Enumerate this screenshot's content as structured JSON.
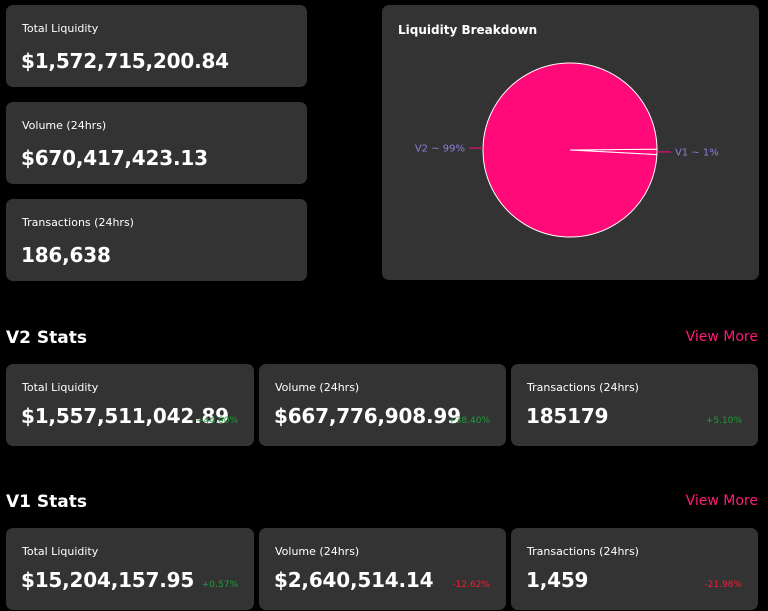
{
  "overview": {
    "total_liquidity": {
      "label": "Total Liquidity",
      "value": "$1,572,715,200.84"
    },
    "volume": {
      "label": "Volume (24hrs)",
      "value": "$670,417,423.13"
    },
    "transactions": {
      "label": "Transactions (24hrs)",
      "value": "186,638"
    }
  },
  "breakdown": {
    "title": "Liquidity Breakdown",
    "v2_label": "V2 ~ 99%",
    "v1_label": "V1 ~ 1%"
  },
  "chart_data": {
    "type": "pie",
    "title": "Liquidity Breakdown",
    "categories": [
      "V2",
      "V1"
    ],
    "values": [
      99,
      1
    ],
    "colors": [
      "#ff0a78",
      "#ff0a78"
    ],
    "labels": [
      "V2 ~ 99%",
      "V1 ~ 1%"
    ],
    "label_color": "#8a80d8"
  },
  "v2": {
    "title": "V2 Stats",
    "view_more": "View More",
    "total_liquidity": {
      "label": "Total Liquidity",
      "value": "$1,557,511,042.89",
      "change": "+44.00%"
    },
    "volume": {
      "label": "Volume (24hrs)",
      "value": "$667,776,908.99",
      "change": "+38.40%"
    },
    "transactions": {
      "label": "Transactions (24hrs)",
      "value": "185179",
      "change": "+5.10%"
    }
  },
  "v1": {
    "title": "V1 Stats",
    "view_more": "View More",
    "total_liquidity": {
      "label": "Total Liquidity",
      "value": "$15,204,157.95",
      "change": "+0.57%"
    },
    "volume": {
      "label": "Volume (24hrs)",
      "value": "$2,640,514.14",
      "change": "-12.62%"
    },
    "transactions": {
      "label": "Transactions (24hrs)",
      "value": "1,459",
      "change": "-21.98%"
    }
  },
  "colors": {
    "background": "#000000",
    "card": "#333333",
    "accent": "#ff1a75",
    "positive": "#1f9d3a",
    "negative": "#e8213a"
  }
}
